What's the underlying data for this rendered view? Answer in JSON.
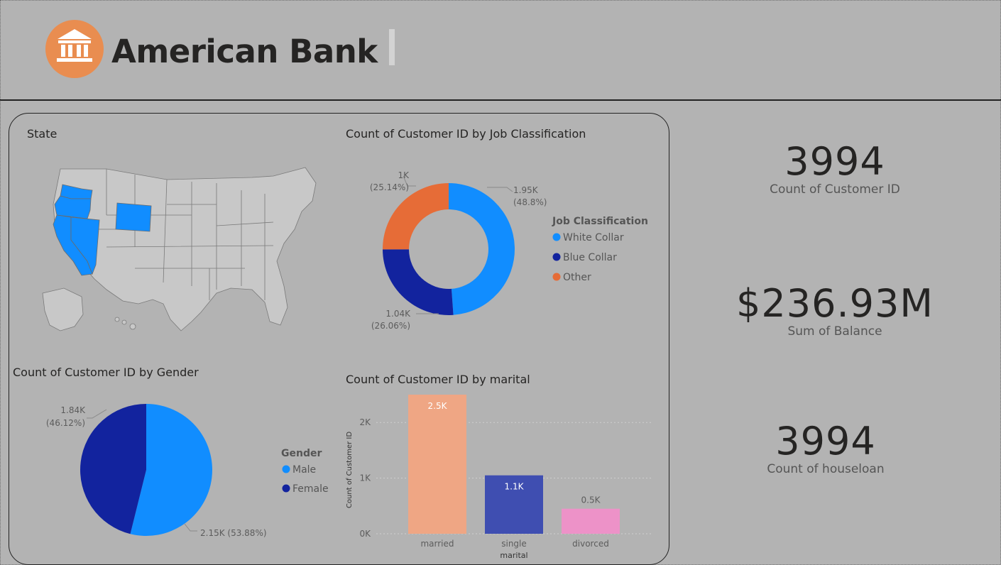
{
  "app": {
    "title": "American Bank",
    "logo_icon": "bank-building-icon",
    "accent_color": "#e98d50"
  },
  "map_visual": {
    "title": "State",
    "highlighted_color": "#118dff",
    "base_color": "#c8c8c8"
  },
  "job_chart": {
    "title": "Count of Customer ID by Job Classification",
    "legend_title": "Job Classification",
    "chart_data": {
      "type": "donut",
      "slices": [
        {
          "name": "White Collar",
          "value": 1.95,
          "display": "1.95K",
          "percent": "(48.8%)",
          "color": "#118dff"
        },
        {
          "name": "Blue Collar",
          "value": 1.04,
          "display": "1.04K",
          "percent": "(26.06%)",
          "color": "#12239e"
        },
        {
          "name": "Other",
          "value": 1.0,
          "display": "1K",
          "percent": "(25.14%)",
          "color": "#e66c37"
        }
      ]
    }
  },
  "gender_chart": {
    "title": "Count of Customer ID by Gender",
    "legend_title": "Gender",
    "chart_data": {
      "type": "pie",
      "slices": [
        {
          "name": "Male",
          "value": 2.15,
          "display": "2.15K (53.88%)",
          "color": "#118dff"
        },
        {
          "name": "Female",
          "value": 1.84,
          "display": "1.84K",
          "percent": "(46.12%)",
          "color": "#12239e"
        }
      ]
    }
  },
  "marital_chart": {
    "title": "Count of Customer ID by marital",
    "chart_data": {
      "type": "bar",
      "xlabel": "marital",
      "ylabel": "Count of Customer ID",
      "ylim": [
        0,
        2500
      ],
      "yticks": [
        {
          "v": 0,
          "label": "0K"
        },
        {
          "v": 1000,
          "label": "1K"
        },
        {
          "v": 2000,
          "label": "2K"
        }
      ],
      "bars": [
        {
          "category": "married",
          "value": 2500,
          "label": "2.5K",
          "color": "#efa684"
        },
        {
          "category": "single",
          "value": 1050,
          "label": "1.1K",
          "color": "#3f4eb1"
        },
        {
          "category": "divorced",
          "value": 450,
          "label": "0.5K",
          "color": "#ed92c8"
        }
      ]
    }
  },
  "kpis": [
    {
      "value": "3994",
      "label": "Count of Customer ID"
    },
    {
      "value": "$236.93M",
      "label": "Sum of Balance"
    },
    {
      "value": "3994",
      "label": "Count of houseloan"
    }
  ]
}
